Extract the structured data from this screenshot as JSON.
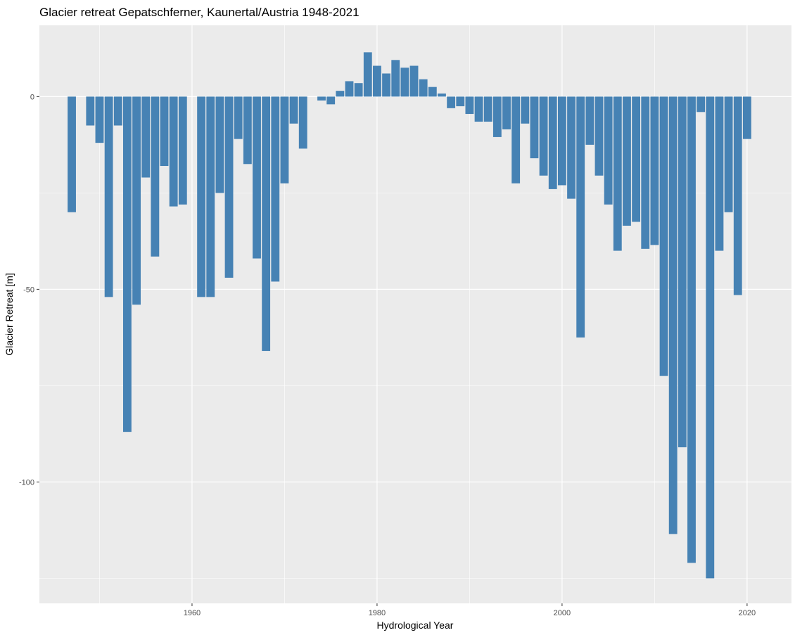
{
  "chart_data": {
    "type": "bar",
    "title": "Glacier retreat Gepatschferner, Kaunertal/Austria 1948-2021",
    "xlabel": "Hydrological Year",
    "ylabel": "Glacier Retreat [m]",
    "x_ticks": [
      "1960",
      "1980",
      "2000",
      "2020"
    ],
    "y_ticks": [
      "0",
      "-50",
      "-100"
    ],
    "xlim": [
      1943.5,
      2024.8
    ],
    "ylim": [
      -131.5,
      18.5
    ],
    "grid": true,
    "bar_color": "#4682B4",
    "panel_color": "#EBEBEB",
    "grid_color": "#FFFFFF",
    "x": [
      1947,
      1949,
      1950,
      1951,
      1952,
      1953,
      1954,
      1955,
      1956,
      1957,
      1958,
      1959,
      1961,
      1962,
      1963,
      1964,
      1965,
      1966,
      1967,
      1968,
      1969,
      1970,
      1971,
      1972,
      1974,
      1975,
      1976,
      1977,
      1978,
      1979,
      1980,
      1981,
      1982,
      1983,
      1984,
      1985,
      1986,
      1987,
      1988,
      1989,
      1990,
      1991,
      1992,
      1993,
      1994,
      1995,
      1996,
      1997,
      1998,
      1999,
      2000,
      2001,
      2002,
      2003,
      2004,
      2005,
      2006,
      2007,
      2008,
      2009,
      2010,
      2011,
      2012,
      2013,
      2014,
      2015,
      2016,
      2017,
      2018,
      2019,
      2020
    ],
    "values": [
      -30,
      -7.5,
      -12,
      -52,
      -7.5,
      -87,
      -54,
      -21,
      -41.5,
      -18,
      -28.5,
      -28,
      -52,
      -52,
      -25,
      -47,
      -11,
      -17.5,
      -42,
      -66,
      -48,
      -22.5,
      -7,
      -13.5,
      -1,
      -2,
      1.5,
      4,
      3.5,
      11.5,
      8,
      6,
      9.5,
      7.5,
      8,
      4.5,
      2.5,
      0.8,
      -3,
      -2.5,
      -4.5,
      -6.5,
      -6.5,
      -10.5,
      -8.5,
      -22.5,
      -7,
      -16,
      -20.5,
      -24,
      -23,
      -26.5,
      -62.5,
      -12.5,
      -20.5,
      -28,
      -40,
      -33.5,
      -32.5,
      -39.5,
      -38.5,
      -72.5,
      -113.5,
      -91,
      -121,
      -4,
      -125,
      -40,
      -30,
      -51.5,
      -11
    ]
  }
}
